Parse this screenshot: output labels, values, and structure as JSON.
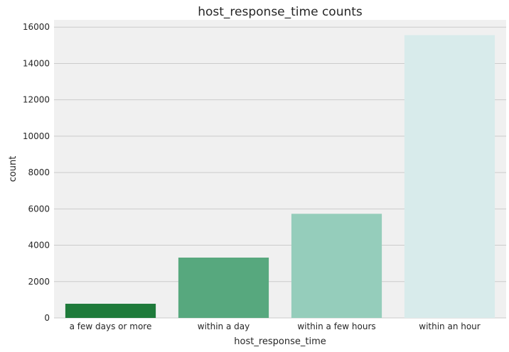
{
  "chart_data": {
    "type": "bar",
    "title": "host_response_time counts",
    "xlabel": "host_response_time",
    "ylabel": "count",
    "categories": [
      "a few days or more",
      "within a day",
      "within a few hours",
      "within an hour"
    ],
    "values": [
      780,
      3320,
      5730,
      15560
    ],
    "colors": [
      "#1e7a3a",
      "#57a87e",
      "#95cdbb",
      "#d8ebeb"
    ],
    "ylim": [
      0,
      16400
    ],
    "yticks": [
      0,
      2000,
      4000,
      6000,
      8000,
      10000,
      12000,
      14000,
      16000
    ],
    "ytick_labels": [
      "0",
      "2000",
      "4000",
      "6000",
      "8000",
      "10000",
      "12000",
      "14000",
      "16000"
    ],
    "grid": true,
    "background": "#f0f0f0",
    "gridline_color": "#cbcbcb"
  }
}
